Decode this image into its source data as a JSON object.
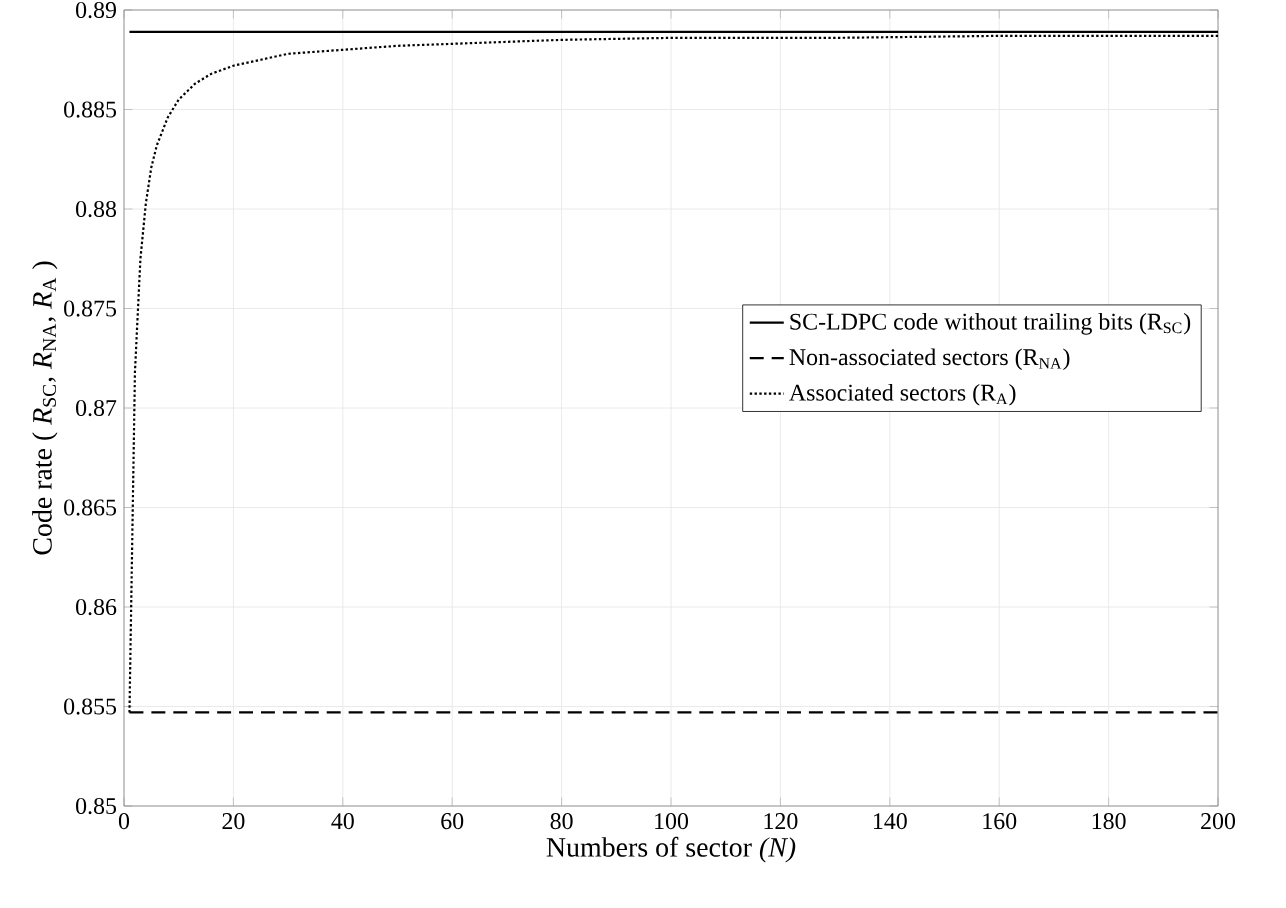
{
  "chart_data": {
    "type": "line",
    "xlabel": "Numbers of sector *(N)*",
    "ylabel": "Code rate ( *R*$_{SC}$, *R*$_{NA}$, *R*$_{A}$ )",
    "xlim": [
      0,
      200
    ],
    "xticks": [
      0,
      20,
      40,
      60,
      80,
      100,
      120,
      140,
      160,
      180,
      200
    ],
    "ylim": [
      0.85,
      0.89
    ],
    "yticks": [
      0.85,
      0.855,
      0.86,
      0.865,
      0.87,
      0.875,
      0.88,
      0.885,
      0.89
    ],
    "grid": true,
    "legend": "top right",
    "series": [
      {
        "name": "SC-LDPC code without trailing bits (R$_{SC}$)",
        "color": "#000000",
        "line_style": "solid",
        "x": [
          1,
          200
        ],
        "values": [
          0.8889,
          0.8889
        ]
      },
      {
        "name": "Non-associated sectors (R$_{NA}$)",
        "color": "#000000",
        "line_style": "dashed",
        "x": [
          1,
          200
        ],
        "values": [
          0.8547,
          0.8547
        ]
      },
      {
        "name": "Associated sectors (R$_{A}$)",
        "color": "#000000",
        "line_style": "dotted",
        "x": [
          1,
          2,
          3,
          4,
          5,
          6,
          8,
          10,
          13,
          16,
          20,
          25,
          30,
          40,
          50,
          60,
          80,
          100,
          130,
          160,
          200
        ],
        "values": [
          0.8547,
          0.8718,
          0.8775,
          0.8803,
          0.8821,
          0.8832,
          0.8846,
          0.8855,
          0.8863,
          0.8868,
          0.8872,
          0.8875,
          0.8878,
          0.888,
          0.8882,
          0.8883,
          0.8885,
          0.8886,
          0.8886,
          0.8887,
          0.8887
        ]
      }
    ]
  }
}
